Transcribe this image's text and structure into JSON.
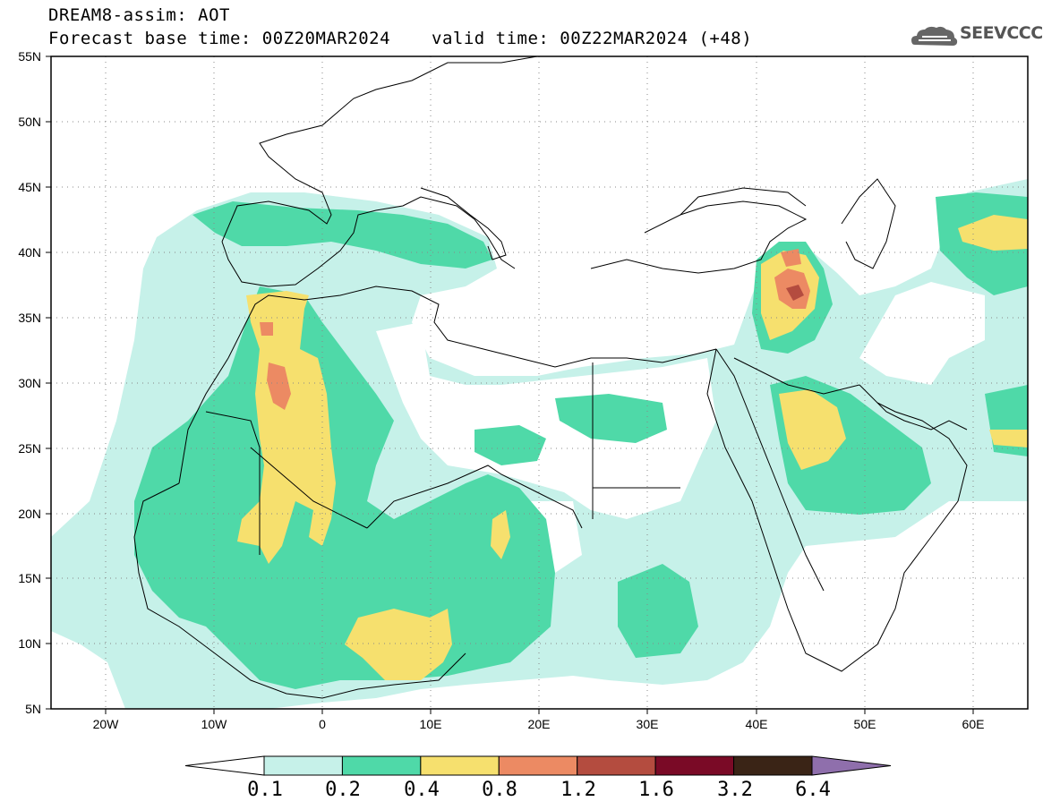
{
  "title": "DREAM8-assim: AOT",
  "base_time": "Forecast base time: 00Z20MAR2024",
  "valid_time": "valid time: 00Z22MAR2024 (+48)",
  "logo_text": "SEEVCCC",
  "lat_labels": [
    "55N",
    "50N",
    "45N",
    "40N",
    "35N",
    "30N",
    "25N",
    "20N",
    "15N",
    "10N",
    "5N"
  ],
  "lon_labels": [
    "20W",
    "10W",
    "0",
    "10E",
    "20E",
    "30E",
    "40E",
    "50E",
    "60E"
  ],
  "colorbar": {
    "colors": [
      "#ffffff",
      "#c6f1e9",
      "#4fd9a8",
      "#f6e06e",
      "#ec8a63",
      "#b44c3f",
      "#7a0a26",
      "#3a2416",
      "#8f6fac"
    ],
    "labels": [
      "0.1",
      "0.2",
      "0.4",
      "0.8",
      "1.2",
      "1.6",
      "3.2",
      "6.4"
    ]
  }
}
